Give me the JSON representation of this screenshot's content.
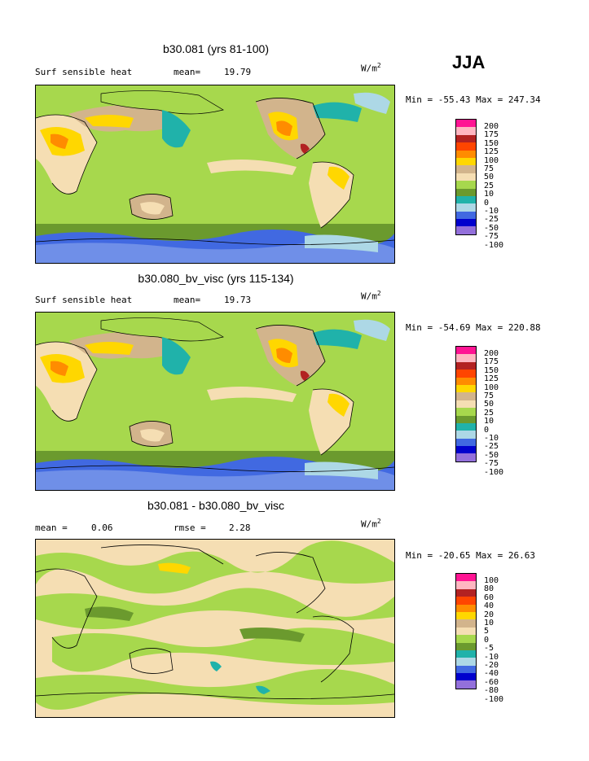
{
  "season": "JJA",
  "units_base": "W/m",
  "units_exp": "2",
  "panels": [
    {
      "title": "b30.081 (yrs 81-100)",
      "field_label": "Surf sensible heat",
      "stat1_label": "mean=",
      "stat1_value": "19.79",
      "stat2_label": "",
      "stat2_value": "",
      "minmax": "Min = -55.43 Max = 247.34",
      "colorbar_labels": [
        "200",
        "175",
        "150",
        "125",
        "100",
        "75",
        "50",
        "25",
        "10",
        "0",
        "-10",
        "-25",
        "-50",
        "-75",
        "-100"
      ]
    },
    {
      "title": "b30.080_bv_visc (yrs 115-134)",
      "field_label": "Surf sensible heat",
      "stat1_label": "mean=",
      "stat1_value": "19.73",
      "stat2_label": "",
      "stat2_value": "",
      "minmax": "Min = -54.69 Max = 220.88",
      "colorbar_labels": [
        "200",
        "175",
        "150",
        "125",
        "100",
        "75",
        "50",
        "25",
        "10",
        "0",
        "-10",
        "-25",
        "-50",
        "-75",
        "-100"
      ]
    },
    {
      "title": "b30.081 - b30.080_bv_visc",
      "field_label": "",
      "stat1_label": "mean =",
      "stat1_value": "0.06",
      "stat2_label": "rmse =",
      "stat2_value": "2.28",
      "minmax": "Min = -20.65 Max =  26.63",
      "colorbar_labels": [
        "100",
        "80",
        "60",
        "40",
        "20",
        "10",
        "5",
        "0",
        "-5",
        "-10",
        "-20",
        "-40",
        "-60",
        "-80",
        "-100"
      ]
    }
  ],
  "colorbar_colors": [
    "#ff1493",
    "#ffb6c1",
    "#b22222",
    "#ff4500",
    "#ff8c00",
    "#ffd700",
    "#d2b48c",
    "#f5deb3",
    "#a7d84d",
    "#6b9a2e",
    "#20b2aa",
    "#add8e6",
    "#4169e1",
    "#0000cd",
    "#9370db"
  ],
  "legend_colors_note": "",
  "map_palette": {
    "ocean_main": "#a7d84d",
    "ocean_dark": "#6b9a2e",
    "beige": "#f5deb3",
    "tan": "#d2b48c",
    "gold": "#ffd700",
    "orange": "#ff8c00",
    "teal": "#20b2aa",
    "lightblue": "#add8e6",
    "blue": "#4169e1",
    "red": "#b22222"
  }
}
